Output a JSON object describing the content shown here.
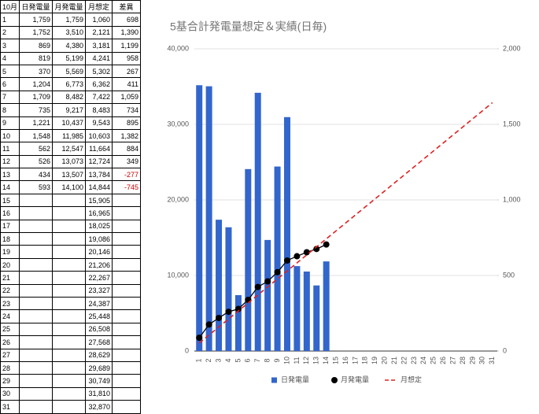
{
  "table": {
    "header": [
      "10月",
      "日発電量",
      "月発電量",
      "月想定",
      "差異"
    ],
    "rows": [
      [
        "1",
        "1,759",
        "1,759",
        "1,060",
        "698"
      ],
      [
        "2",
        "1,752",
        "3,510",
        "2,121",
        "1,390"
      ],
      [
        "3",
        "869",
        "4,380",
        "3,181",
        "1,199"
      ],
      [
        "4",
        "819",
        "5,199",
        "4,241",
        "958"
      ],
      [
        "5",
        "370",
        "5,569",
        "5,302",
        "267"
      ],
      [
        "6",
        "1,204",
        "6,773",
        "6,362",
        "411"
      ],
      [
        "7",
        "1,709",
        "8,482",
        "7,422",
        "1,059"
      ],
      [
        "8",
        "735",
        "9,217",
        "8,483",
        "734"
      ],
      [
        "9",
        "1,221",
        "10,437",
        "9,543",
        "895"
      ],
      [
        "10",
        "1,548",
        "11,985",
        "10,603",
        "1,382"
      ],
      [
        "11",
        "562",
        "12,547",
        "11,664",
        "884"
      ],
      [
        "12",
        "526",
        "13,073",
        "12,724",
        "349"
      ],
      [
        "13",
        "434",
        "13,507",
        "13,784",
        "-277"
      ],
      [
        "14",
        "593",
        "14,100",
        "14,844",
        "-745"
      ],
      [
        "15",
        null,
        null,
        "15,905",
        null
      ],
      [
        "16",
        null,
        null,
        "16,965",
        null
      ],
      [
        "17",
        null,
        null,
        "18,025",
        null
      ],
      [
        "18",
        null,
        null,
        "19,086",
        null
      ],
      [
        "19",
        null,
        null,
        "20,146",
        null
      ],
      [
        "20",
        null,
        null,
        "21,206",
        null
      ],
      [
        "21",
        null,
        null,
        "22,267",
        null
      ],
      [
        "22",
        null,
        null,
        "23,327",
        null
      ],
      [
        "23",
        null,
        null,
        "24,387",
        null
      ],
      [
        "24",
        null,
        null,
        "25,448",
        null
      ],
      [
        "25",
        null,
        null,
        "26,508",
        null
      ],
      [
        "26",
        null,
        null,
        "27,568",
        null
      ],
      [
        "27",
        null,
        null,
        "28,629",
        null
      ],
      [
        "28",
        null,
        null,
        "29,689",
        null
      ],
      [
        "29",
        null,
        null,
        "30,749",
        null
      ],
      [
        "30",
        null,
        null,
        "31,810",
        null
      ],
      [
        "31",
        null,
        null,
        "32,870",
        null
      ]
    ]
  },
  "chart_data": {
    "type": "bar_line",
    "title": "5基合計発電量想定＆実績(日毎)",
    "categories": [
      "1",
      "2",
      "3",
      "4",
      "5",
      "6",
      "7",
      "8",
      "9",
      "10",
      "11",
      "12",
      "13",
      "14",
      "15",
      "16",
      "17",
      "18",
      "19",
      "20",
      "21",
      "22",
      "23",
      "24",
      "25",
      "26",
      "27",
      "28",
      "29",
      "30",
      "31"
    ],
    "series": [
      {
        "name": "日発電量",
        "type": "bar",
        "axis": "y2",
        "color": "#3366cc",
        "values": [
          1759,
          1752,
          869,
          819,
          370,
          1204,
          1709,
          735,
          1221,
          1548,
          562,
          526,
          434,
          593,
          null,
          null,
          null,
          null,
          null,
          null,
          null,
          null,
          null,
          null,
          null,
          null,
          null,
          null,
          null,
          null,
          null
        ]
      },
      {
        "name": "月発電量",
        "type": "line",
        "marker": "circle",
        "color": "#000000",
        "values": [
          1759,
          3510,
          4380,
          5199,
          5569,
          6773,
          8482,
          9217,
          10437,
          11985,
          12547,
          13073,
          13507,
          14100,
          null,
          null,
          null,
          null,
          null,
          null,
          null,
          null,
          null,
          null,
          null,
          null,
          null,
          null,
          null,
          null,
          null
        ]
      },
      {
        "name": "月想定",
        "type": "line",
        "dash": true,
        "color": "#e02020",
        "values": [
          1060,
          2121,
          3181,
          4241,
          5302,
          6362,
          7422,
          8483,
          9543,
          10603,
          11664,
          12724,
          13784,
          14844,
          15905,
          16965,
          18025,
          19086,
          20146,
          21206,
          22267,
          23327,
          24387,
          25448,
          26508,
          27568,
          28629,
          29689,
          30749,
          31810,
          32870
        ]
      }
    ],
    "ylim": [
      0,
      40000
    ],
    "yticks": [
      0,
      {
        "value": 10000,
        "label": "10,000"
      },
      {
        "value": 20000,
        "label": "20,000"
      },
      {
        "value": 30000,
        "label": "30,000"
      },
      {
        "value": 40000,
        "label": "40,000"
      }
    ],
    "y2lim": [
      0,
      2000
    ],
    "y2ticks": [
      0,
      500,
      {
        "value": 1000,
        "label": "1,000"
      },
      {
        "value": 1500,
        "label": "1,500"
      },
      {
        "value": 2000,
        "label": "2,000"
      }
    ],
    "grid": true,
    "legend": "bottom"
  }
}
